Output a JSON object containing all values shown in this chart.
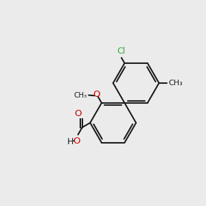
{
  "bg_color": "#ebebeb",
  "bond_color": "#1a1a1a",
  "o_color": "#cc0000",
  "cl_color": "#33aa33",
  "lw": 1.5,
  "r": 0.55,
  "figsize": [
    3.0,
    3.0
  ],
  "dpi": 100,
  "xlim": [
    -1.8,
    1.8
  ],
  "ylim": [
    -1.9,
    1.9
  ]
}
